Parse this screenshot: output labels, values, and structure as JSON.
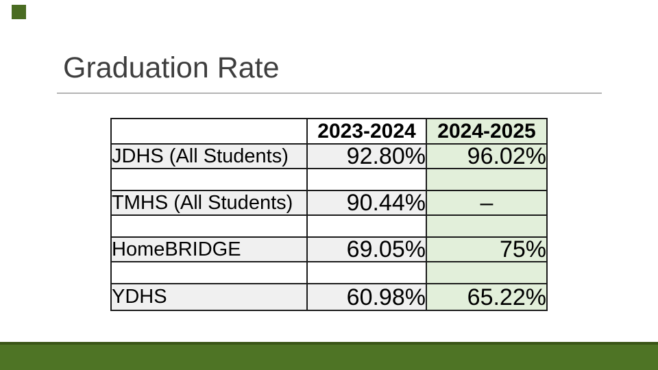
{
  "slide": {
    "title": "Graduation Rate"
  },
  "theme": {
    "accent_green": "#4e7425",
    "accent_green_dark": "#3a5517",
    "corner_accent_green": "#4a6c22",
    "cell_green": "#e2efda",
    "cell_gray": "#f0f0f0",
    "border_color": "#1a1a1a",
    "title_color": "#3e3e3e",
    "rule_color": "#b4b4b4"
  },
  "table": {
    "col_headers": [
      "2023-2024",
      "2024-2025"
    ],
    "rows": [
      {
        "label": "JDHS (All Students)",
        "y2324": "92.80%",
        "y2425": "96.02%"
      },
      {
        "label": "",
        "y2324": "",
        "y2425": ""
      },
      {
        "label": "TMHS (All Students)",
        "y2324": "90.44%",
        "y2425": "–"
      },
      {
        "label": "",
        "y2324": "",
        "y2425": ""
      },
      {
        "label": "HomeBRIDGE",
        "y2324": "69.05%",
        "y2425": "75%"
      },
      {
        "label": "",
        "y2324": "",
        "y2425": ""
      },
      {
        "label": "YDHS",
        "y2324": "60.98%",
        "y2425": "65.22%"
      }
    ]
  }
}
